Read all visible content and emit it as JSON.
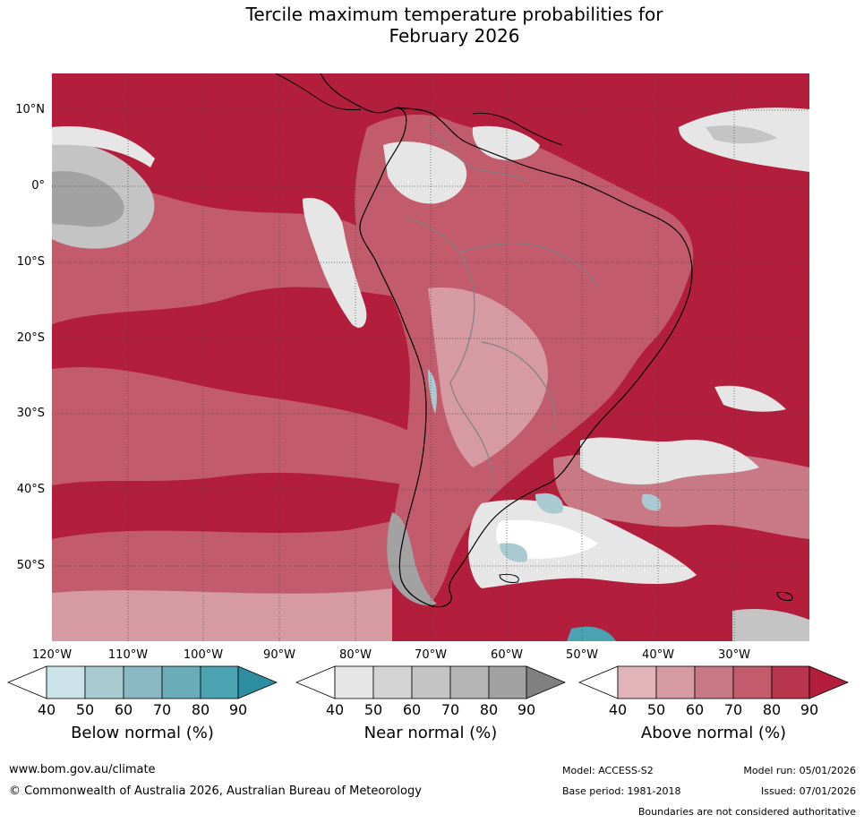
{
  "title": {
    "line1": "Tercile maximum temperature probabilities for",
    "line2": "February 2026"
  },
  "axes": {
    "lat_labels": [
      "10°N",
      "0°",
      "10°S",
      "20°S",
      "30°S",
      "40°S",
      "50°S"
    ],
    "lon_labels": [
      "120°W",
      "110°W",
      "100°W",
      "90°W",
      "80°W",
      "70°W",
      "60°W",
      "50°W",
      "40°W",
      "30°W"
    ]
  },
  "colorbars": {
    "below": {
      "title": "Below normal (%)",
      "ticks": [
        "40",
        "50",
        "60",
        "70",
        "80",
        "90"
      ],
      "colors": [
        "#ffffff",
        "#cae2e8",
        "#a8cad0",
        "#8bb9c3",
        "#6aadb8",
        "#4ba2b1",
        "#2d8ea1"
      ]
    },
    "near": {
      "title": "Near normal (%)",
      "ticks": [
        "40",
        "50",
        "60",
        "70",
        "80",
        "90"
      ],
      "colors": [
        "#ffffff",
        "#e6e6e6",
        "#d4d4d4",
        "#c4c4c4",
        "#b4b4b4",
        "#a2a2a2",
        "#808080"
      ]
    },
    "above": {
      "title": "Above normal (%)",
      "ticks": [
        "40",
        "50",
        "60",
        "70",
        "80",
        "90"
      ],
      "colors": [
        "#ffffff",
        "#e1b4ba",
        "#d59aa2",
        "#c97985",
        "#c25c6c",
        "#b8364d",
        "#b31e3c"
      ]
    }
  },
  "footer": {
    "website": "www.bom.gov.au/climate",
    "copyright": "© Commonwealth of Australia 2026, Australian Bureau of Meteorology",
    "model": "Model: ACCESS-S2",
    "model_run": "Model run: 05/01/2026",
    "base_period": "Base period: 1981-2018",
    "issued": "Issued: 07/01/2026",
    "disclaimer": "Boundaries are not considered authoritative"
  },
  "map_colors": {
    "ocean_above": "#b31e3c",
    "mid_above": "#c25c6c",
    "light_above": "#d59aa2",
    "near_light": "#e6e6e6",
    "near_mid": "#c4c4c4",
    "near_dark": "#a2a2a2",
    "below": "#a8cad0",
    "coast": "#000000",
    "border": "#808080"
  }
}
